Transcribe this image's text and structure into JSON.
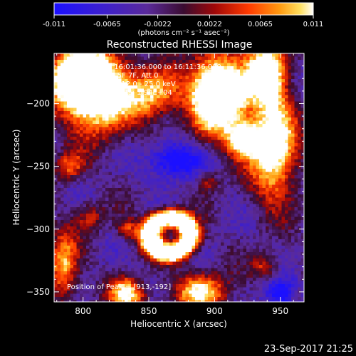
{
  "chart_data": {
    "type": "heatmap",
    "title": "Reconstructed RHESSI Image",
    "xlabel": "Heliocentric X (arcsec)",
    "ylabel": "Heliocentric Y (arcsec)",
    "xlim": [
      778,
      968
    ],
    "ylim": [
      -358,
      -160
    ],
    "xticks": [
      800,
      850,
      900,
      950
    ],
    "yticks": [
      -200,
      -250,
      -300,
      -350
    ],
    "colorbar": {
      "min": -0.011,
      "max": 0.011,
      "ticks": [
        "-0.011",
        "-0.0065",
        "-0.0022",
        "0.0022",
        "0.0065",
        "0.011"
      ],
      "unit_label": "(photons cm⁻² s⁻¹ asec⁻²)"
    },
    "annotations": [
      "27-Oct-2015 16:01:36.000 to 16:11:36.000",
      "Detectors: 1F 5F 7F, Att 0",
      "Energy Range: 12.0 - 25.0 keV",
      "Clean    Total counts: 1.94E+04"
    ],
    "peak_label": "Position of Peak = [913,-192]",
    "peak_position": [
      913,
      -192
    ],
    "limb": "white curve (solar limb)",
    "regions": [
      {
        "x": 811,
        "y": -190,
        "amp": 1.05,
        "sx": 18,
        "sy": 22
      },
      {
        "x": 793,
        "y": -178,
        "amp": 0.9,
        "sx": 12,
        "sy": 14
      },
      {
        "x": 855,
        "y": -192,
        "amp": 0.55,
        "sx": 14,
        "sy": 14
      },
      {
        "x": 902,
        "y": -192,
        "amp": 1.15,
        "sx": 14,
        "sy": 22
      },
      {
        "x": 913,
        "y": -192,
        "amp": 0.5,
        "sx": 8,
        "sy": 8
      },
      {
        "x": 940,
        "y": -175,
        "amp": 0.9,
        "sx": 10,
        "sy": 18
      },
      {
        "x": 945,
        "y": -235,
        "amp": 0.85,
        "sx": 12,
        "sy": 28
      },
      {
        "x": 922,
        "y": -228,
        "amp": 0.8,
        "sx": 8,
        "sy": 10
      },
      {
        "x": 790,
        "y": -250,
        "amp": 0.4,
        "sx": 8,
        "sy": 8
      },
      {
        "x": 785,
        "y": -330,
        "amp": 0.55,
        "sx": 8,
        "sy": 20
      },
      {
        "x": 805,
        "y": -290,
        "amp": 0.3,
        "sx": 8,
        "sy": 8
      },
      {
        "x": 834,
        "y": -300,
        "amp": 0.35,
        "sx": 6,
        "sy": 6
      },
      {
        "x": 895,
        "y": -262,
        "amp": 0.3,
        "sx": 6,
        "sy": 6
      },
      {
        "x": 832,
        "y": -345,
        "amp": 0.4,
        "sx": 8,
        "sy": 6
      },
      {
        "x": 835,
        "y": -355,
        "amp": 0.55,
        "sx": 10,
        "sy": 6
      },
      {
        "x": 890,
        "y": -350,
        "amp": 0.65,
        "sx": 14,
        "sy": 10
      },
      {
        "x": 938,
        "y": -330,
        "amp": 0.35,
        "sx": 7,
        "sy": 7
      },
      {
        "x": 961,
        "y": -352,
        "amp": 0.3,
        "sx": 5,
        "sy": 5
      }
    ],
    "ring": {
      "x": 866,
      "y": -305,
      "radius": 15,
      "width": 6,
      "amp": 1.05
    },
    "dark_spots": [
      {
        "x": 870,
        "y": -245,
        "amp": -0.5,
        "sx": 14,
        "sy": 10
      },
      {
        "x": 952,
        "y": -352,
        "amp": -0.5,
        "sx": 10,
        "sy": 8
      }
    ]
  },
  "footer": {
    "timestamp": "23-Sep-2017 21:25"
  }
}
